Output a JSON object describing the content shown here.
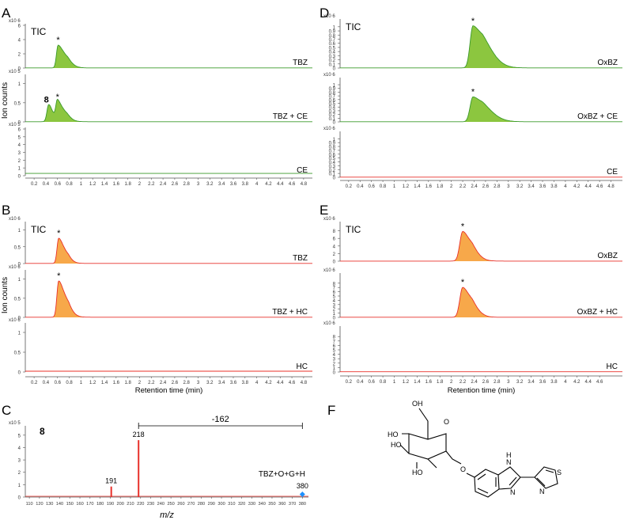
{
  "colors": {
    "green_fill": "#8cc63f",
    "green_line": "#3a9a2a",
    "orange_fill": "#f7a84a",
    "red_line": "#e8302a",
    "axis": "#555555",
    "ms_red": "#e8302a",
    "ms_marker": "#1e90ff"
  },
  "shared": {
    "y_exp_6": "x10 6",
    "y_exp_5": "x10 5",
    "tic": "TIC",
    "star": "*",
    "ion_counts": "Ion counts",
    "xlabel_rt": "Retention time (min)",
    "xlabel_mz": "m/z"
  },
  "panel_letters": {
    "A": "A",
    "B": "B",
    "C": "C",
    "D": "D",
    "E": "E",
    "F": "F"
  },
  "chart_data": [
    {
      "id": "A",
      "type": "line",
      "title": "A",
      "xlabel": "",
      "ylabel": "Ion counts",
      "xlim": [
        0.05,
        4.95
      ],
      "xticks": [
        0.2,
        0.4,
        0.6,
        0.8,
        1,
        1.2,
        1.4,
        1.6,
        1.8,
        2,
        2.2,
        2.4,
        2.6,
        2.8,
        3,
        3.2,
        3.4,
        3.6,
        3.8,
        4,
        4.2,
        4.4,
        4.6,
        4.8
      ],
      "xtick_labels": [
        "0.2",
        "0.4",
        "0.6",
        "0.8",
        "1",
        "1.2",
        "1.4",
        "1.6",
        "1.8",
        "2",
        "2.2",
        "2.4",
        "2.6",
        "2.8",
        "3",
        "3.2",
        "3.4",
        "3.6",
        "3.8",
        "4",
        "4.2",
        "4.4",
        "4.6",
        "4.8"
      ],
      "subplots": [
        {
          "label": "TBZ",
          "exp": "x10 6",
          "ymax": 6,
          "yticks": [
            0,
            2,
            4,
            6
          ],
          "ytick_labels": [
            "0",
            "2",
            "4",
            "6"
          ],
          "peaks": [
            {
              "rt": 0.61,
              "height": 3.2,
              "sigma": 0.028,
              "tail": 0.11,
              "label": "*"
            }
          ],
          "baseline": 0.02,
          "fill": "#8cc63f",
          "line": "#3a9a2a",
          "tic": true
        },
        {
          "label": "TBZ + CE",
          "exp": "x10 5",
          "ymax": 1.2,
          "yticks": [
            0,
            0.5,
            1
          ],
          "ytick_labels": [
            "0",
            "0.5",
            "1"
          ],
          "peaks": [
            {
              "rt": 0.45,
              "height": 0.45,
              "sigma": 0.03,
              "tail": 0.05,
              "label": "8"
            },
            {
              "rt": 0.6,
              "height": 0.52,
              "sigma": 0.028,
              "tail": 0.1,
              "label": "*"
            }
          ],
          "baseline": 0.005,
          "fill": "#8cc63f",
          "line": "#3a9a2a",
          "tic": false
        },
        {
          "label": "CE",
          "exp": "x10 5",
          "ymax": 6,
          "yticks": [
            0,
            1,
            2,
            3,
            4,
            5,
            6
          ],
          "ytick_labels": [
            "0",
            "1",
            "2",
            "3",
            "4",
            "5",
            "6"
          ],
          "peaks": [],
          "baseline": 0.3,
          "fill": "#8cc63f",
          "line": "#3a9a2a",
          "tic": false
        }
      ]
    },
    {
      "id": "B",
      "type": "line",
      "title": "B",
      "xlabel": "Retention time (min)",
      "ylabel": "Ion counts",
      "xlim": [
        0.05,
        4.95
      ],
      "xticks": [
        0.2,
        0.4,
        0.6,
        0.8,
        1,
        1.2,
        1.4,
        1.6,
        1.8,
        2,
        2.2,
        2.4,
        2.6,
        2.8,
        3,
        3.2,
        3.4,
        3.6,
        3.8,
        4,
        4.2,
        4.4,
        4.6,
        4.8
      ],
      "xtick_labels": [
        "0.2",
        "0.4",
        "0.6",
        "0.8",
        "1",
        "1.2",
        "1.4",
        "1.6",
        "1.8",
        "2",
        "2.2",
        "2.4",
        "2.6",
        "2.8",
        "3",
        "3.2",
        "3.4",
        "3.6",
        "3.8",
        "4",
        "4.2",
        "4.4",
        "4.6",
        "4.8"
      ],
      "subplots": [
        {
          "label": "TBZ",
          "exp": "x10 6",
          "ymax": 1.2,
          "yticks": [
            0,
            0.5,
            1
          ],
          "ytick_labels": [
            "0",
            "0.5",
            "1"
          ],
          "peaks": [
            {
              "rt": 0.62,
              "height": 0.75,
              "sigma": 0.028,
              "tail": 0.09,
              "label": "*"
            }
          ],
          "baseline": 0.005,
          "fill": "#f7a84a",
          "line": "#e8302a",
          "tic": true
        },
        {
          "label": "TBZ + HC",
          "exp": "x10 6",
          "ymax": 1.2,
          "yticks": [
            0,
            0.5,
            1
          ],
          "ytick_labels": [
            "0",
            "0.5",
            "1"
          ],
          "peaks": [
            {
              "rt": 0.62,
              "height": 0.95,
              "sigma": 0.03,
              "tail": 0.1,
              "label": "*"
            }
          ],
          "baseline": 0.005,
          "fill": "#f7a84a",
          "line": "#e8302a",
          "tic": false
        },
        {
          "label": "HC",
          "exp": "x10 6",
          "ymax": 1.2,
          "yticks": [
            0,
            0.5,
            1
          ],
          "ytick_labels": [
            "0",
            "0.5",
            "1"
          ],
          "peaks": [],
          "baseline": 0.02,
          "fill": "#f7a84a",
          "line": "#e8302a",
          "tic": false
        }
      ]
    },
    {
      "id": "D",
      "type": "line",
      "title": "D",
      "xlabel": "",
      "ylabel": "",
      "xlim": [
        0.05,
        5.0
      ],
      "xticks": [
        0.2,
        0.4,
        0.6,
        0.8,
        1,
        1.2,
        1.4,
        1.6,
        1.8,
        2,
        2.2,
        2.4,
        2.6,
        2.8,
        3,
        3.2,
        3.4,
        3.6,
        3.8,
        4,
        4.2,
        4.4,
        4.6,
        4.8
      ],
      "xtick_labels": [
        "0.2",
        "0.4",
        "0.6",
        "0.8",
        "1",
        "1.2",
        "1.4",
        "1.6",
        "1.8",
        "2",
        "2.2",
        "2.4",
        "2.6",
        "2.8",
        "3",
        "3.2",
        "3.4",
        "3.6",
        "3.8",
        "4",
        "4.2",
        "4.4",
        "4.6",
        "4.8"
      ],
      "subplots": [
        {
          "label": "OxBZ",
          "exp": "x10 6",
          "ymax": 1.15,
          "yticks": [
            0,
            0.1,
            0.2,
            0.3,
            0.4,
            0.5,
            0.6,
            0.7,
            0.8,
            0.9,
            1
          ],
          "ytick_labels": [
            "0",
            "0.1",
            "0.2",
            "0.3",
            "0.4",
            "0.5",
            "0.6",
            "0.7",
            "0.8",
            "0.9",
            "1"
          ],
          "peaks": [
            {
              "rt": 2.38,
              "height": 1.02,
              "sigma": 0.05,
              "tail": 0.2,
              "label": "*"
            }
          ],
          "baseline": 0.004,
          "fill": "#8cc63f",
          "line": "#3a9a2a",
          "tic": true
        },
        {
          "label": "OxBZ + CE",
          "exp": "x10 6",
          "ymax": 1.15,
          "yticks": [
            0,
            0.1,
            0.2,
            0.3,
            0.4,
            0.5,
            0.6,
            0.7,
            0.8,
            0.9,
            1
          ],
          "ytick_labels": [
            "0",
            "0.1",
            "0.2",
            "0.3",
            "0.4",
            "0.5",
            "0.6",
            "0.7",
            "0.8",
            "0.9",
            "1"
          ],
          "peaks": [
            {
              "rt": 2.38,
              "height": 0.67,
              "sigma": 0.05,
              "tail": 0.2,
              "label": "*"
            }
          ],
          "baseline": 0.004,
          "fill": "#8cc63f",
          "line": "#3a9a2a",
          "tic": false
        },
        {
          "label": "CE",
          "exp": "x10 6",
          "ymax": 1.15,
          "yticks": [
            0,
            0.1,
            0.2,
            0.3,
            0.4,
            0.5,
            0.6,
            0.7,
            0.8,
            0.9,
            1
          ],
          "ytick_labels": [
            "0",
            "0.1",
            "0.2",
            "0.3",
            "0.4",
            "0.5",
            "0.6",
            "0.7",
            "0.8",
            "0.9",
            "1"
          ],
          "peaks": [],
          "baseline": 0.004,
          "fill": "#8cc63f",
          "line": "#e8302a",
          "tic": false
        }
      ]
    },
    {
      "id": "E",
      "type": "line",
      "title": "E",
      "xlabel": "Retention time (min)",
      "ylabel": "",
      "xlim": [
        0.05,
        5.0
      ],
      "xticks": [
        0.2,
        0.4,
        0.6,
        0.8,
        1,
        1.2,
        1.4,
        1.6,
        1.8,
        2,
        2.2,
        2.4,
        2.6,
        2.8,
        3,
        3.2,
        3.4,
        3.6,
        3.8,
        4,
        4.2,
        4.4,
        4.6
      ],
      "xtick_labels": [
        "0.2",
        "0.4",
        "0.6",
        "0.8",
        "1",
        "1.2",
        "1.4",
        "1.6",
        "1.8",
        "2",
        "2.2",
        "2.4",
        "2.6",
        "2.8",
        "3",
        "3.2",
        "3.4",
        "3.6",
        "3.8",
        "4",
        "4.2",
        "4.4",
        "4.6"
      ],
      "subplots": [
        {
          "label": "OxBZ",
          "exp": "x10 6",
          "ymax": 10,
          "yticks": [
            0,
            2,
            4,
            6,
            8
          ],
          "ytick_labels": [
            "0",
            "2",
            "4",
            "6",
            "8"
          ],
          "peaks": [
            {
              "rt": 2.2,
              "height": 7.8,
              "sigma": 0.05,
              "tail": 0.12,
              "label": "*"
            }
          ],
          "baseline": 0.03,
          "fill": "#f7a84a",
          "line": "#e8302a",
          "tic": true
        },
        {
          "label": "OxBZ + HC",
          "exp": "x10 6",
          "ymax": 10,
          "yticks": [
            0,
            1,
            2,
            3,
            4,
            5,
            6,
            7,
            8
          ],
          "ytick_labels": [
            "0",
            "1",
            "2",
            "3",
            "4",
            "5",
            "6",
            "7",
            "8"
          ],
          "peaks": [
            {
              "rt": 2.2,
              "height": 7.0,
              "sigma": 0.05,
              "tail": 0.12,
              "label": "*"
            }
          ],
          "baseline": 0.03,
          "fill": "#f7a84a",
          "line": "#e8302a",
          "tic": false
        },
        {
          "label": "HC",
          "exp": "x10 6",
          "ymax": 10,
          "yticks": [
            0,
            1,
            2,
            3,
            4,
            5,
            6,
            7,
            8
          ],
          "ytick_labels": [
            "0",
            "1",
            "2",
            "3",
            "4",
            "5",
            "6",
            "7",
            "8"
          ],
          "peaks": [],
          "baseline": 0.05,
          "fill": "#f7a84a",
          "line": "#e8302a",
          "tic": false
        }
      ]
    },
    {
      "id": "C",
      "type": "bar",
      "title": "C",
      "xlabel": "m/z",
      "ylabel": "",
      "compound": "8",
      "exp": "x10 5",
      "ymax": 5.5,
      "yticks": [
        0,
        1,
        2,
        3,
        4,
        5
      ],
      "ytick_labels": [
        "0",
        "1",
        "2",
        "3",
        "4",
        "5"
      ],
      "xlim": [
        106,
        386
      ],
      "xticks": [
        110,
        120,
        130,
        140,
        150,
        160,
        170,
        180,
        190,
        200,
        210,
        220,
        230,
        240,
        250,
        260,
        270,
        280,
        290,
        300,
        310,
        320,
        330,
        340,
        350,
        360,
        370,
        380
      ],
      "xtick_labels": [
        "110",
        "120",
        "130",
        "140",
        "150",
        "160",
        "170",
        "180",
        "190",
        "200",
        "210",
        "220",
        "230",
        "240",
        "250",
        "260",
        "270",
        "280",
        "290",
        "300",
        "310",
        "320",
        "330",
        "340",
        "350",
        "360",
        "370",
        "380"
      ],
      "bars": [
        {
          "mz": 191,
          "value": 0.85,
          "label": "191"
        },
        {
          "mz": 218,
          "value": 4.6,
          "label": "218"
        }
      ],
      "precursor": {
        "mz": 380,
        "label": "380"
      },
      "neutral_loss": {
        "from": 218,
        "to": 380,
        "label": "-162"
      },
      "annotation": "TBZ+O+G+H"
    }
  ],
  "structure": {
    "substituents": [
      "OH",
      "HO",
      "HO",
      "HO",
      "O",
      "O"
    ],
    "nh": "H",
    "n_labels": [
      "N",
      "N",
      "N"
    ],
    "s_label": "S"
  }
}
